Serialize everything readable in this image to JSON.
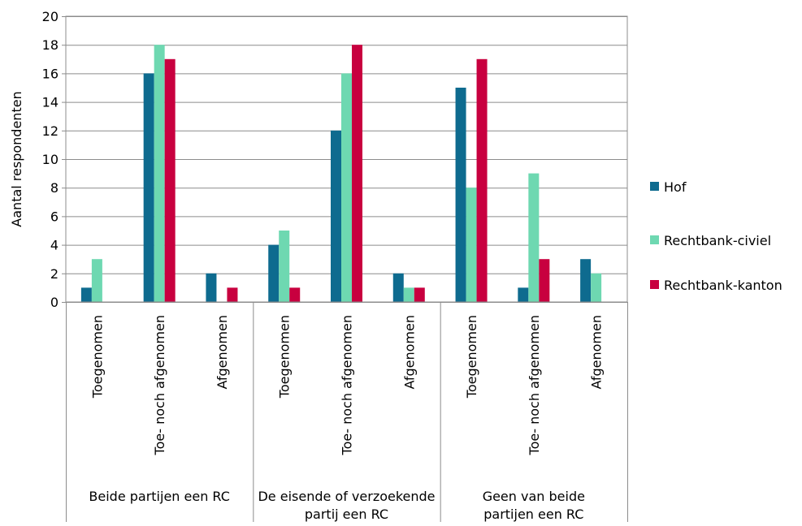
{
  "chart_data": {
    "type": "bar",
    "title": "",
    "ylabel": "Aantal respondenten",
    "xlabel": "",
    "ylim": [
      0,
      20
    ],
    "ytick_step": 2,
    "grid": true,
    "legend_position": "right",
    "groups": [
      {
        "label_lines": [
          "Beide partijen een RC"
        ],
        "categories": [
          "Toegenomen",
          "Toe- noch afgenomen",
          "Afgenomen"
        ]
      },
      {
        "label_lines": [
          "De eisende of verzoekende",
          "partij een RC"
        ],
        "categories": [
          "Toegenomen",
          "Toe- noch afgenomen",
          "Afgenomen"
        ]
      },
      {
        "label_lines": [
          "Geen van beide",
          "partijen een RC"
        ],
        "categories": [
          "Toegenomen",
          "Toe- noch afgenomen",
          "Afgenomen"
        ]
      }
    ],
    "series": [
      {
        "name": "Hof",
        "color": "#0e6b8f",
        "values": [
          1,
          16,
          2,
          4,
          12,
          2,
          15,
          1,
          3
        ]
      },
      {
        "name": "Rechtbank-civiel",
        "color": "#6ed8b1",
        "values": [
          3,
          18,
          0,
          5,
          16,
          1,
          8,
          9,
          2
        ]
      },
      {
        "name": "Rechtbank-kanton",
        "color": "#c8003f",
        "values": [
          0,
          17,
          1,
          1,
          18,
          1,
          17,
          3,
          0
        ]
      }
    ]
  }
}
